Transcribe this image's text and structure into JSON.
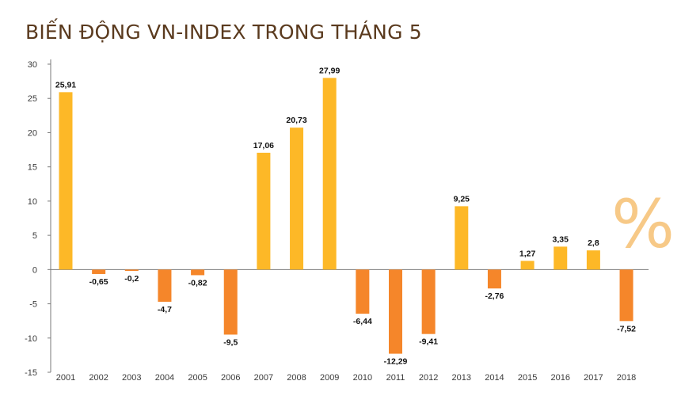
{
  "title": "BIẾN ĐỘNG VN-INDEX TRONG THÁNG 5",
  "unit_symbol": "%",
  "colors": {
    "positive": "#fdb827",
    "negative": "#f5862a",
    "title": "#5a3a1e",
    "axis": "#7a7a7a"
  },
  "chart_data": {
    "type": "bar",
    "title": "BIẾN ĐỘNG VN-INDEX TRONG THÁNG 5",
    "xlabel": "",
    "ylabel": "%",
    "ylim": [
      -15,
      30
    ],
    "yticks": [
      30,
      25,
      20,
      15,
      10,
      5,
      0,
      -5,
      -10,
      -15
    ],
    "grid": false,
    "categories": [
      "2001",
      "2002",
      "2003",
      "2004",
      "2005",
      "2006",
      "2007",
      "2008",
      "2009",
      "2010",
      "2011",
      "2012",
      "2013",
      "2014",
      "2015",
      "2016",
      "2017",
      "2018"
    ],
    "values": [
      25.91,
      -0.65,
      -0.2,
      -4.7,
      -0.82,
      -9.5,
      17.06,
      20.73,
      27.99,
      -6.44,
      -12.29,
      -9.41,
      9.25,
      -2.76,
      1.27,
      3.35,
      2.8,
      -7.52
    ],
    "data_labels": [
      "25,91",
      "-0,65",
      "-0,2",
      "-4,7",
      "-0,82",
      "-9,5",
      "17,06",
      "20,73",
      "27,99",
      "-6,44",
      "-12,29",
      "-9,41",
      "9,25",
      "-2,76",
      "1,27",
      "3,35",
      "2,8",
      "-7,52"
    ]
  }
}
